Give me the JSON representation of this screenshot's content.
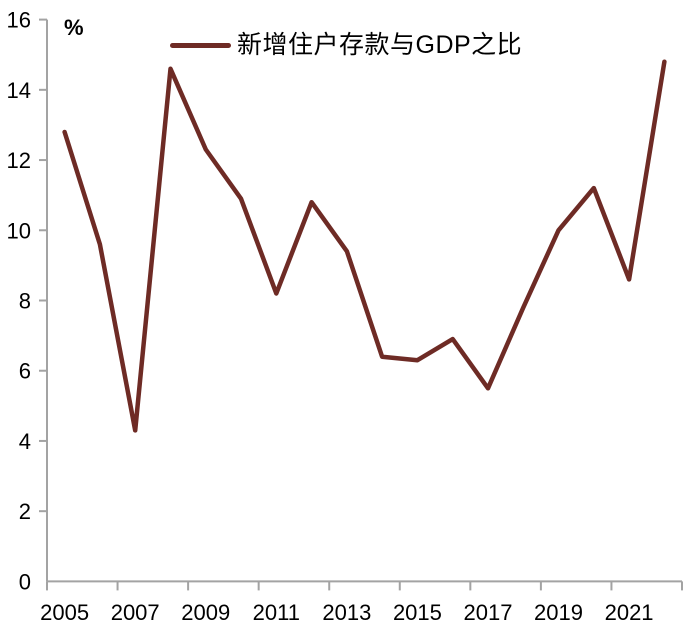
{
  "chart_data": {
    "type": "line",
    "title": "",
    "x": [
      2005,
      2006,
      2007,
      2008,
      2009,
      2010,
      2011,
      2012,
      2013,
      2014,
      2015,
      2016,
      2017,
      2018,
      2019,
      2020,
      2021,
      2022
    ],
    "series": [
      {
        "name": "新增住户存款与GDP之比",
        "color": "#6E2B25",
        "values": [
          12.8,
          9.6,
          4.3,
          14.6,
          12.3,
          10.9,
          8.2,
          10.8,
          9.4,
          6.4,
          6.3,
          6.9,
          5.5,
          7.8,
          10.0,
          11.2,
          8.6,
          14.8
        ]
      }
    ],
    "ylabel": "%",
    "ylim": [
      0,
      16
    ],
    "ytick_step": 2,
    "ytick_labels": [
      "0",
      "2",
      "4",
      "6",
      "8",
      "10",
      "12",
      "14",
      "16"
    ],
    "xtick_labels": [
      "2005",
      "2007",
      "2009",
      "2011",
      "2013",
      "2015",
      "2017",
      "2019",
      "2021"
    ],
    "xtick_every": 2,
    "grid": false,
    "legend_position": "top-center",
    "axis_color": "#A3A3A3",
    "text_color": "#000000",
    "background": "#FFFFFF"
  }
}
